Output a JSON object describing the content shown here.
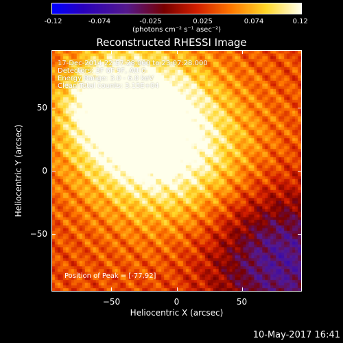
{
  "colorbar": {
    "ticks": [
      "-0.12",
      "-0.074",
      "-0.025",
      "0.025",
      "0.074",
      "0.12"
    ],
    "units": "(photons cm⁻² s⁻¹ asec⁻²)"
  },
  "info": {
    "time_range": "17-Dec-2014 22:57:28.000 to 23:07:28.000",
    "detectors": "Detectors: 3F 6F 9F, Att 0",
    "energy": "Energy Range: 3.0 - 6.0 keV",
    "clean": "Clean    Total counts: 3.15E+04",
    "peak": "Position of Peak = [-77,92]"
  },
  "datestamp": "10-May-2017 16:41",
  "chart_data": {
    "type": "heatmap",
    "title": "Reconstructed RHESSI Image",
    "xlabel": "Heliocentric X (arcsec)",
    "ylabel": "Heliocentric Y (arcsec)",
    "xlim": [
      -96,
      96
    ],
    "ylim": [
      -96,
      96
    ],
    "xticks": [
      -50,
      0,
      50
    ],
    "yticks": [
      -50,
      0,
      50
    ],
    "x_tick_labels": [
      "−50",
      "0",
      "50"
    ],
    "y_tick_labels": [
      "−50",
      "0",
      "50"
    ],
    "colorscale": {
      "name": "red-temperature",
      "min": -0.12,
      "max": 0.12
    },
    "peak_position": [
      -77,
      92
    ],
    "sources": [
      {
        "x": -30,
        "y": 40,
        "sigma": 38,
        "amplitude": 0.12
      },
      {
        "x": -55,
        "y": 60,
        "sigma": 22,
        "amplitude": 0.05
      },
      {
        "x": 10,
        "y": 5,
        "sigma": 45,
        "amplitude": 0.05
      }
    ],
    "negative_region": {
      "x": 80,
      "y": -70,
      "sigma": 40,
      "amplitude": -0.09
    },
    "ripple": {
      "period": 11,
      "amplitude": 0.018
    }
  }
}
